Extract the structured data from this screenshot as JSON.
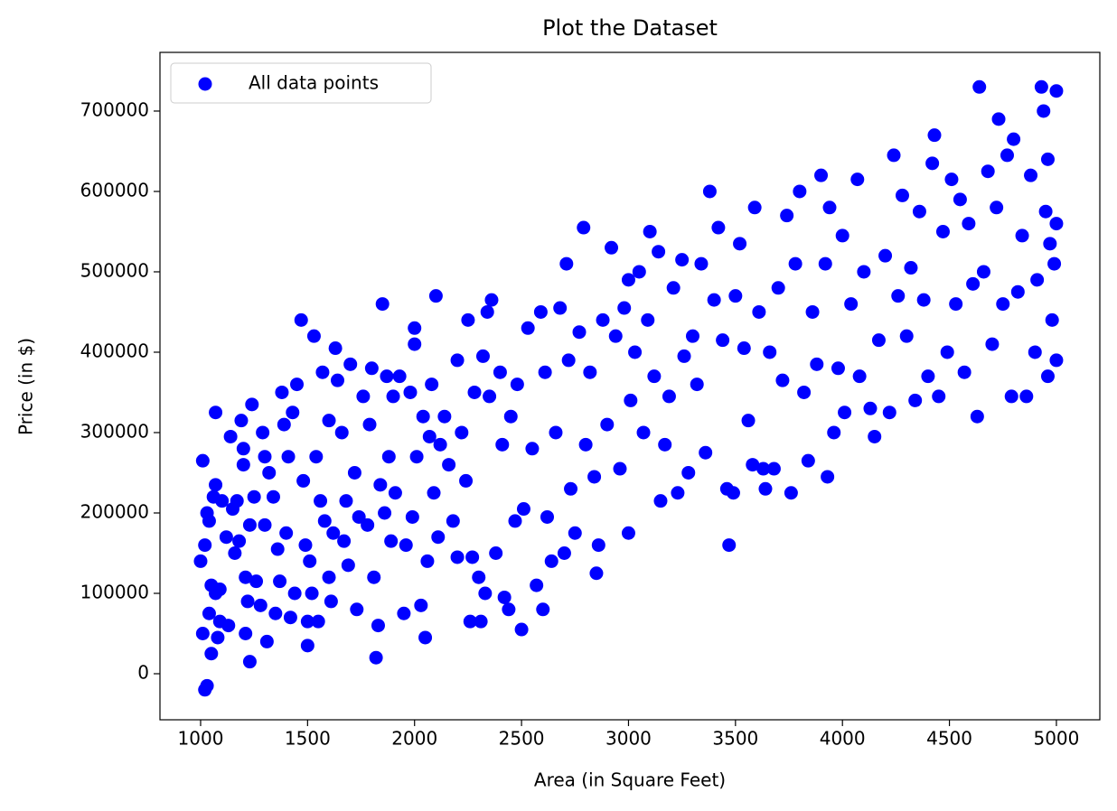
{
  "chart_data": {
    "type": "scatter",
    "title": "Plot the Dataset",
    "x_label": "Area (in Square Feet)",
    "y_label": "Price (in $)",
    "xlim": [
      810,
      5203
    ],
    "ylim": [
      -57300,
      773000
    ],
    "xticks": [
      1000,
      1500,
      2000,
      2500,
      3000,
      3500,
      4000,
      4500,
      5000
    ],
    "yticks": [
      0,
      100000,
      200000,
      300000,
      400000,
      500000,
      600000,
      700000
    ],
    "legend": "upper left",
    "grid": false,
    "series": [
      {
        "name": "All data points",
        "color": "#0000ff",
        "x": [
          1000,
          1010,
          1020,
          1030,
          1010,
          1020,
          1030,
          1040,
          1040,
          1050,
          1050,
          1060,
          1070,
          1070,
          1070,
          1080,
          1090,
          1090,
          1100,
          1120,
          1130,
          1140,
          1150,
          1160,
          1170,
          1180,
          1190,
          1200,
          1200,
          1210,
          1210,
          1220,
          1230,
          1230,
          1240,
          1250,
          1260,
          1280,
          1290,
          1300,
          1300,
          1310,
          1320,
          1340,
          1350,
          1360,
          1370,
          1380,
          1390,
          1400,
          1410,
          1420,
          1430,
          1440,
          1450,
          1470,
          1480,
          1490,
          1500,
          1500,
          1510,
          1520,
          1530,
          1540,
          1550,
          1560,
          1570,
          1580,
          1600,
          1600,
          1610,
          1620,
          1630,
          1640,
          1660,
          1670,
          1680,
          1690,
          1700,
          1720,
          1730,
          1740,
          1760,
          1780,
          1790,
          1800,
          1810,
          1820,
          1830,
          1840,
          1850,
          1860,
          1870,
          1880,
          1890,
          1900,
          1910,
          1930,
          1950,
          1960,
          1980,
          1990,
          2000,
          2000,
          2010,
          2030,
          2040,
          2050,
          2060,
          2070,
          2080,
          2090,
          2100,
          2110,
          2120,
          2140,
          2160,
          2180,
          2200,
          2200,
          2220,
          2240,
          2250,
          2260,
          2270,
          2280,
          2300,
          2310,
          2320,
          2330,
          2340,
          2350,
          2360,
          2380,
          2400,
          2410,
          2420,
          2440,
          2450,
          2470,
          2480,
          2500,
          2510,
          2530,
          2550,
          2570,
          2590,
          2600,
          2610,
          2620,
          2640,
          2660,
          2680,
          2700,
          2710,
          2720,
          2730,
          2750,
          2770,
          2790,
          2800,
          2820,
          2840,
          2850,
          2860,
          2880,
          2900,
          2920,
          2940,
          2960,
          2980,
          3000,
          3000,
          3010,
          3030,
          3050,
          3070,
          3090,
          3100,
          3120,
          3140,
          3150,
          3170,
          3190,
          3210,
          3230,
          3250,
          3260,
          3280,
          3300,
          3320,
          3340,
          3360,
          3380,
          3400,
          3420,
          3440,
          3460,
          3470,
          3490,
          3500,
          3520,
          3540,
          3560,
          3580,
          3590,
          3610,
          3630,
          3640,
          3660,
          3680,
          3700,
          3720,
          3740,
          3760,
          3780,
          3800,
          3820,
          3840,
          3860,
          3880,
          3900,
          3920,
          3930,
          3940,
          3960,
          3980,
          4000,
          4010,
          4040,
          4070,
          4080,
          4100,
          4130,
          4150,
          4170,
          4200,
          4220,
          4240,
          4260,
          4280,
          4300,
          4320,
          4340,
          4360,
          4380,
          4400,
          4420,
          4430,
          4450,
          4470,
          4490,
          4510,
          4530,
          4550,
          4570,
          4590,
          4610,
          4630,
          4640,
          4660,
          4680,
          4700,
          4720,
          4730,
          4750,
          4770,
          4790,
          4800,
          4820,
          4840,
          4860,
          4880,
          4900,
          4910,
          4930,
          4940,
          4950,
          4960,
          4970,
          4980,
          4990,
          5000,
          5000,
          5000,
          4960
        ],
        "values": [
          140000,
          50000,
          -20000,
          -15000,
          265000,
          160000,
          200000,
          190000,
          75000,
          25000,
          110000,
          220000,
          325000,
          235000,
          100000,
          45000,
          65000,
          105000,
          215000,
          170000,
          60000,
          295000,
          205000,
          150000,
          215000,
          165000,
          315000,
          260000,
          280000,
          120000,
          50000,
          90000,
          15000,
          185000,
          335000,
          220000,
          115000,
          85000,
          300000,
          270000,
          185000,
          40000,
          250000,
          220000,
          75000,
          155000,
          115000,
          350000,
          310000,
          175000,
          270000,
          70000,
          325000,
          100000,
          360000,
          440000,
          240000,
          160000,
          35000,
          65000,
          140000,
          100000,
          420000,
          270000,
          65000,
          215000,
          375000,
          190000,
          120000,
          315000,
          90000,
          175000,
          405000,
          365000,
          300000,
          165000,
          215000,
          135000,
          385000,
          250000,
          80000,
          195000,
          345000,
          185000,
          310000,
          380000,
          120000,
          20000,
          60000,
          235000,
          460000,
          200000,
          370000,
          270000,
          165000,
          345000,
          225000,
          370000,
          75000,
          160000,
          350000,
          195000,
          410000,
          430000,
          270000,
          85000,
          320000,
          45000,
          140000,
          295000,
          360000,
          225000,
          470000,
          170000,
          285000,
          320000,
          260000,
          190000,
          145000,
          390000,
          300000,
          240000,
          440000,
          65000,
          145000,
          350000,
          120000,
          65000,
          395000,
          100000,
          450000,
          345000,
          465000,
          150000,
          375000,
          285000,
          95000,
          80000,
          320000,
          190000,
          360000,
          55000,
          205000,
          430000,
          280000,
          110000,
          450000,
          80000,
          375000,
          195000,
          140000,
          300000,
          455000,
          150000,
          510000,
          390000,
          230000,
          175000,
          425000,
          555000,
          285000,
          375000,
          245000,
          125000,
          160000,
          440000,
          310000,
          530000,
          420000,
          255000,
          455000,
          175000,
          490000,
          340000,
          400000,
          500000,
          300000,
          440000,
          550000,
          370000,
          525000,
          215000,
          285000,
          345000,
          480000,
          225000,
          515000,
          395000,
          250000,
          420000,
          360000,
          510000,
          275000,
          600000,
          465000,
          555000,
          415000,
          230000,
          160000,
          225000,
          470000,
          535000,
          405000,
          315000,
          260000,
          580000,
          450000,
          255000,
          230000,
          400000,
          255000,
          480000,
          365000,
          570000,
          225000,
          510000,
          600000,
          350000,
          265000,
          450000,
          385000,
          620000,
          510000,
          245000,
          580000,
          300000,
          380000,
          545000,
          325000,
          460000,
          615000,
          370000,
          500000,
          330000,
          295000,
          415000,
          520000,
          325000,
          645000,
          470000,
          595000,
          420000,
          505000,
          340000,
          575000,
          465000,
          370000,
          635000,
          670000,
          345000,
          550000,
          400000,
          615000,
          460000,
          590000,
          375000,
          560000,
          485000,
          320000,
          730000,
          500000,
          625000,
          410000,
          580000,
          690000,
          460000,
          645000,
          345000,
          665000,
          475000,
          545000,
          345000,
          620000,
          400000,
          490000,
          730000,
          700000,
          575000,
          640000,
          535000,
          440000,
          510000,
          390000,
          725000,
          560000,
          370000
        ]
      }
    ]
  }
}
